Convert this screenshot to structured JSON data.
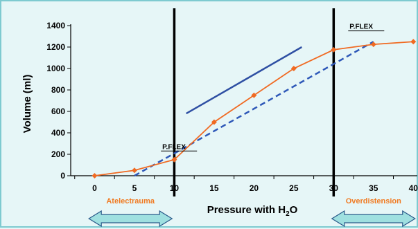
{
  "chart_data": {
    "type": "line",
    "title": "",
    "xlabel": "Pressure with H",
    "xlabel_sub": "2",
    "xlabel_suffix": "O",
    "ylabel": "Volume (ml)",
    "xlim": [
      -3,
      40.5
    ],
    "ylim": [
      0,
      1400
    ],
    "xticks": [
      0,
      5,
      10,
      15,
      20,
      25,
      30,
      35,
      40
    ],
    "yticks": [
      0,
      200,
      400,
      600,
      800,
      1000,
      1200,
      1400
    ],
    "grid": false,
    "series": [
      {
        "color": "#f06a22",
        "marker": "diamond",
        "x": [
          0,
          5,
          10,
          15,
          20,
          25,
          30,
          35,
          40
        ],
        "y": [
          0,
          50,
          150,
          500,
          750,
          1000,
          1175,
          1225,
          1250
        ]
      }
    ],
    "tangent_solid": {
      "color": "#2e4fa3",
      "x": [
        11.5,
        26
      ],
      "y": [
        580,
        1200
      ]
    },
    "tangent_dashed": {
      "color": "#2e58b8",
      "x": [
        5,
        35
      ],
      "y": [
        0,
        1250
      ]
    },
    "vlines": [
      {
        "x": 10,
        "color": "#000000"
      },
      {
        "x": 30,
        "color": "#000000"
      }
    ],
    "annotations": [
      {
        "text": "P.FLEX",
        "x": 8.5,
        "y": 250,
        "underline": true
      },
      {
        "text": "P.FLEX",
        "x": 32,
        "y": 1370,
        "underline": true
      }
    ],
    "zones": [
      {
        "label": "Atelectrauma",
        "x": 4.5
      },
      {
        "label": "Overdistension",
        "x": 35
      }
    ],
    "arrow_fill": "#9fe0e0",
    "arrow_stroke": "#2a5a8a",
    "zone_label_color": "#f07a22"
  }
}
